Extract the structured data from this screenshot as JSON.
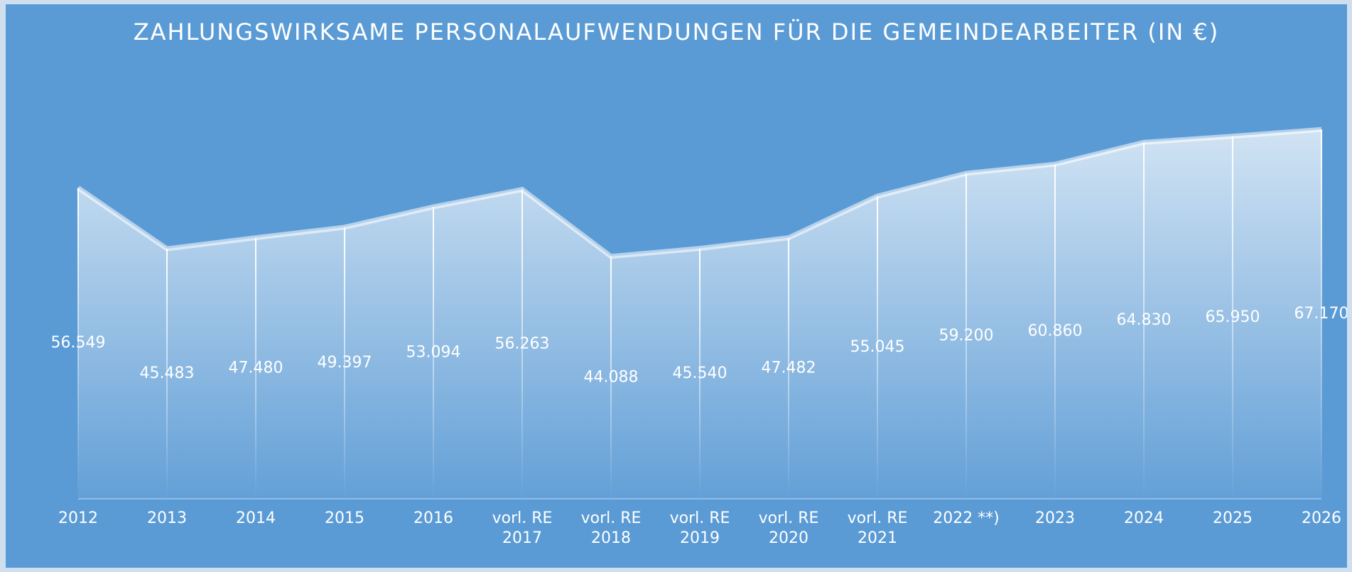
{
  "chart_data": {
    "type": "area",
    "title": "ZAHLUNGSWIRKSAME PERSONALAUFWENDUNGEN FÜR DIE GEMEINDEARBEITER (IN €)",
    "categories": [
      "2012",
      "2013",
      "2014",
      "2015",
      "2016",
      "vorl. RE 2017",
      "vorl. RE 2018",
      "vorl. RE 2019",
      "vorl. RE 2020",
      "vorl. RE 2021",
      "2022 **)",
      "2023",
      "2024",
      "2025",
      "2026"
    ],
    "values": [
      56549,
      45483,
      47480,
      49397,
      53094,
      56263,
      44088,
      45540,
      47482,
      55045,
      59200,
      60860,
      64830,
      65950,
      67170
    ],
    "value_labels": [
      "56.549",
      "45.483",
      "47.480",
      "49.397",
      "53.094",
      "56.263",
      "44.088",
      "45.540",
      "47.482",
      "55.045",
      "59.200",
      "60.860",
      "64.830",
      "65.950",
      "67.170"
    ],
    "color": "#ffffff",
    "ylim": [
      0,
      80000
    ]
  }
}
